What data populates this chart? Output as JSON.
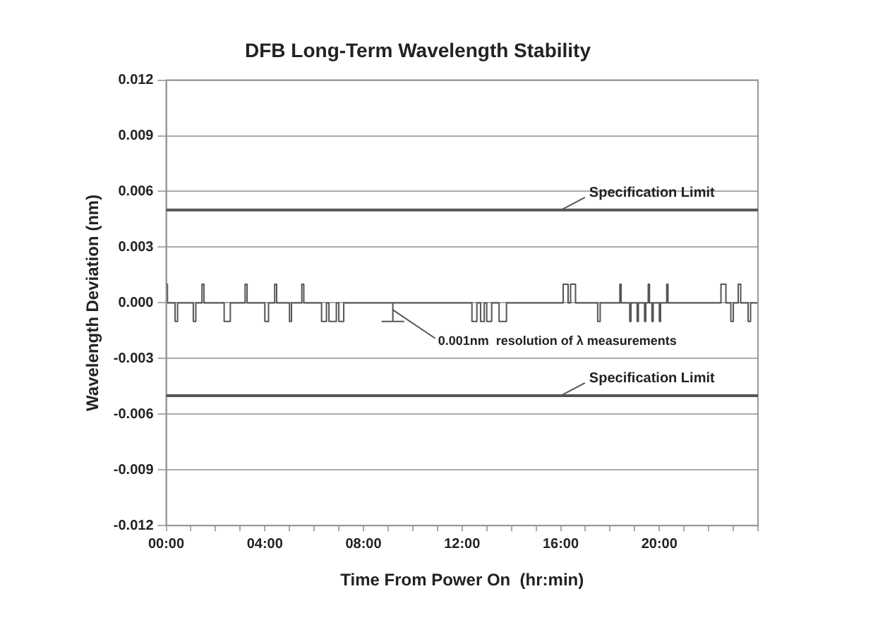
{
  "chart_data": {
    "type": "step",
    "title": "DFB Long-Term Wavelength Stability",
    "xlabel": "Time From Power On  (hr:min)",
    "ylabel": "Wavelength Deviation (nm)",
    "series": [
      {
        "color": "#555555",
        "x": [
          0,
          0.05,
          0.36,
          0.46,
          1.1,
          1.2,
          1.45,
          1.53,
          2.35,
          2.6,
          3.2,
          3.28,
          4.0,
          4.15,
          4.4,
          4.48,
          5.0,
          5.08,
          5.5,
          5.58,
          6.3,
          6.5,
          6.6,
          6.9,
          7.0,
          7.2,
          12.4,
          12.6,
          12.75,
          12.9,
          13.0,
          13.2,
          13.5,
          13.8,
          16.1,
          16.3,
          16.4,
          16.6,
          17.5,
          17.6,
          18.4,
          18.45,
          18.8,
          18.85,
          19.1,
          19.15,
          19.4,
          19.45,
          19.55,
          19.6,
          19.7,
          19.75,
          20.0,
          20.05,
          20.3,
          20.35,
          22.5,
          22.7,
          22.9,
          23.0,
          23.2,
          23.3,
          23.6,
          23.7,
          24
        ],
        "values": [
          0.001,
          0,
          -0.001,
          0,
          -0.001,
          0,
          0.001,
          0,
          -0.001,
          0,
          0.001,
          0,
          -0.001,
          0,
          0.001,
          0,
          -0.001,
          0,
          0.001,
          0,
          -0.001,
          0,
          -0.001,
          0,
          -0.001,
          0,
          -0.001,
          0,
          -0.001,
          0,
          -0.001,
          0,
          -0.001,
          0,
          0.001,
          0,
          0.001,
          0,
          -0.001,
          0,
          0.001,
          0,
          -0.001,
          0,
          -0.001,
          0,
          -0.001,
          0,
          0.001,
          0,
          -0.001,
          0,
          -0.001,
          0,
          0.001,
          0,
          0.001,
          0,
          -0.001,
          0,
          0.001,
          0,
          -0.001,
          0,
          0
        ]
      }
    ],
    "xlim": [
      0,
      24
    ],
    "xticks": [
      {
        "value": 0,
        "label": "00:00"
      },
      {
        "value": 1,
        "label": null
      },
      {
        "value": 2,
        "label": null
      },
      {
        "value": 3,
        "label": null
      },
      {
        "value": 4,
        "label": "04:00"
      },
      {
        "value": 5,
        "label": null
      },
      {
        "value": 6,
        "label": null
      },
      {
        "value": 7,
        "label": null
      },
      {
        "value": 8,
        "label": "08:00"
      },
      {
        "value": 9,
        "label": null
      },
      {
        "value": 10,
        "label": null
      },
      {
        "value": 11,
        "label": null
      },
      {
        "value": 12,
        "label": "12:00"
      },
      {
        "value": 13,
        "label": null
      },
      {
        "value": 14,
        "label": null
      },
      {
        "value": 15,
        "label": null
      },
      {
        "value": 16,
        "label": "16:00"
      },
      {
        "value": 17,
        "label": null
      },
      {
        "value": 18,
        "label": null
      },
      {
        "value": 19,
        "label": null
      },
      {
        "value": 20,
        "label": "20:00"
      },
      {
        "value": 21,
        "label": null
      },
      {
        "value": 22,
        "label": null
      },
      {
        "value": 23,
        "label": null
      },
      {
        "value": 24,
        "label": null
      }
    ],
    "ylim": [
      -0.012,
      0.012
    ],
    "yticks": [
      {
        "value": -0.012,
        "label": "-0.012"
      },
      {
        "value": -0.009,
        "label": "-0.009"
      },
      {
        "value": -0.006,
        "label": "-0.006"
      },
      {
        "value": -0.003,
        "label": "-0.003"
      },
      {
        "value": 0,
        "label": "0.000"
      },
      {
        "value": 0.003,
        "label": "0.003"
      },
      {
        "value": 0.006,
        "label": "0.006"
      },
      {
        "value": 0.009,
        "label": "0.009"
      },
      {
        "value": 0.012,
        "label": "0.012"
      }
    ],
    "ref_lines": [
      {
        "axis": "y",
        "value": 0.005,
        "label": "Specification Limit",
        "color": "#555555"
      },
      {
        "axis": "y",
        "value": -0.005,
        "label": "Specification Limit",
        "color": "#555555"
      }
    ],
    "annotations": [
      "0.001nm  resolution of λ measurements"
    ],
    "grid": "y",
    "legend": false,
    "marker": "none",
    "line_style": "solid"
  }
}
